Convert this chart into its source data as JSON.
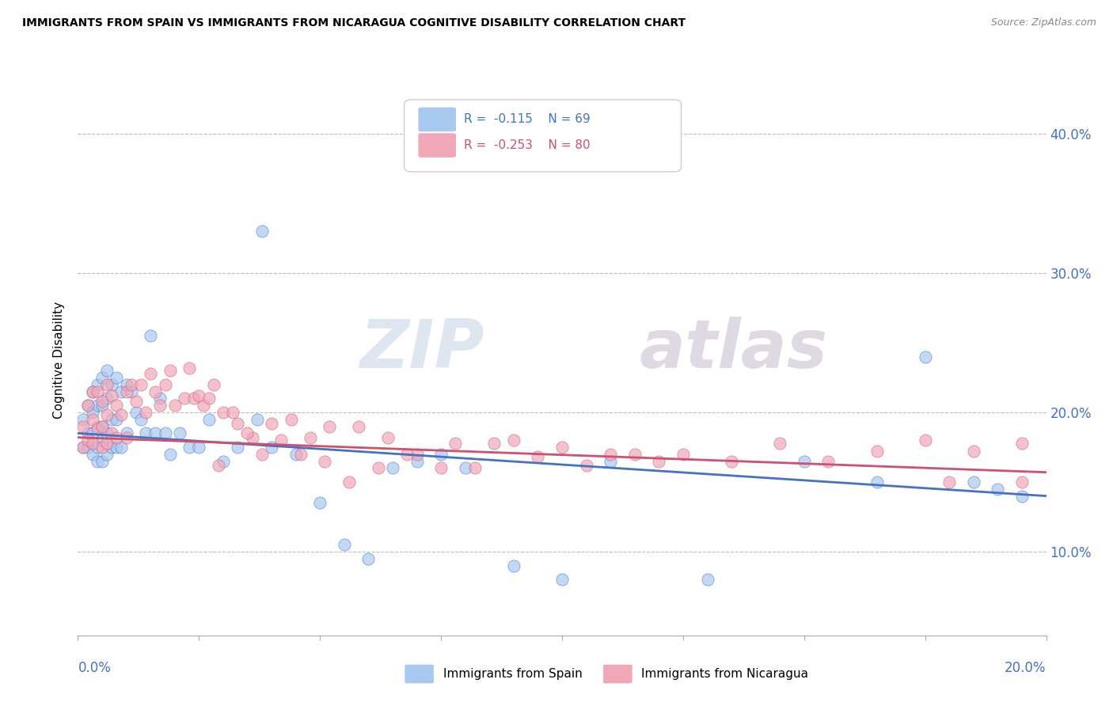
{
  "title": "IMMIGRANTS FROM SPAIN VS IMMIGRANTS FROM NICARAGUA COGNITIVE DISABILITY CORRELATION CHART",
  "source": "Source: ZipAtlas.com",
  "ylabel": "Cognitive Disability",
  "ytick_vals": [
    0.1,
    0.2,
    0.3,
    0.4
  ],
  "xmin": 0.0,
  "xmax": 0.2,
  "ymin": 0.04,
  "ymax": 0.435,
  "spain_color": "#a8c8f0",
  "nicaragua_color": "#f0a8b8",
  "spain_line_color": "#4472c4",
  "nicaragua_line_color": "#d05070",
  "spain_R": -0.115,
  "spain_N": 69,
  "nicaragua_R": -0.253,
  "nicaragua_N": 80,
  "legend_label_spain": "Immigrants from Spain",
  "legend_label_nicaragua": "Immigrants from Nicaragua",
  "watermark_zip": "ZIP",
  "watermark_atlas": "atlas",
  "spain_line_x0": 0.0,
  "spain_line_y0": 0.185,
  "spain_line_x1": 0.2,
  "spain_line_y1": 0.14,
  "nicaragua_line_x0": 0.0,
  "nicaragua_line_y0": 0.182,
  "nicaragua_line_x1": 0.2,
  "nicaragua_line_y1": 0.157,
  "spain_scatter_x": [
    0.001,
    0.001,
    0.002,
    0.002,
    0.002,
    0.003,
    0.003,
    0.003,
    0.003,
    0.004,
    0.004,
    0.004,
    0.004,
    0.004,
    0.005,
    0.005,
    0.005,
    0.005,
    0.005,
    0.006,
    0.006,
    0.006,
    0.006,
    0.007,
    0.007,
    0.007,
    0.008,
    0.008,
    0.008,
    0.009,
    0.009,
    0.01,
    0.01,
    0.011,
    0.012,
    0.013,
    0.014,
    0.015,
    0.016,
    0.017,
    0.018,
    0.019,
    0.021,
    0.023,
    0.025,
    0.027,
    0.03,
    0.033,
    0.037,
    0.04,
    0.045,
    0.05,
    0.055,
    0.06,
    0.065,
    0.07,
    0.075,
    0.08,
    0.09,
    0.1,
    0.11,
    0.13,
    0.15,
    0.165,
    0.175,
    0.185,
    0.19,
    0.195,
    0.038
  ],
  "spain_scatter_y": [
    0.195,
    0.175,
    0.205,
    0.185,
    0.175,
    0.215,
    0.2,
    0.185,
    0.17,
    0.22,
    0.205,
    0.19,
    0.175,
    0.165,
    0.225,
    0.205,
    0.19,
    0.18,
    0.165,
    0.23,
    0.21,
    0.185,
    0.17,
    0.22,
    0.195,
    0.175,
    0.225,
    0.195,
    0.175,
    0.215,
    0.175,
    0.22,
    0.185,
    0.215,
    0.2,
    0.195,
    0.185,
    0.255,
    0.185,
    0.21,
    0.185,
    0.17,
    0.185,
    0.175,
    0.175,
    0.195,
    0.165,
    0.175,
    0.195,
    0.175,
    0.17,
    0.135,
    0.105,
    0.095,
    0.16,
    0.165,
    0.17,
    0.16,
    0.09,
    0.08,
    0.165,
    0.08,
    0.165,
    0.15,
    0.24,
    0.15,
    0.145,
    0.14,
    0.33
  ],
  "nicaragua_scatter_x": [
    0.001,
    0.001,
    0.002,
    0.002,
    0.003,
    0.003,
    0.003,
    0.004,
    0.004,
    0.005,
    0.005,
    0.005,
    0.006,
    0.006,
    0.006,
    0.007,
    0.007,
    0.008,
    0.008,
    0.009,
    0.01,
    0.01,
    0.011,
    0.012,
    0.013,
    0.014,
    0.015,
    0.016,
    0.017,
    0.018,
    0.019,
    0.02,
    0.022,
    0.024,
    0.026,
    0.028,
    0.03,
    0.033,
    0.036,
    0.04,
    0.044,
    0.048,
    0.052,
    0.058,
    0.064,
    0.07,
    0.078,
    0.086,
    0.095,
    0.105,
    0.115,
    0.125,
    0.135,
    0.145,
    0.155,
    0.165,
    0.175,
    0.185,
    0.195,
    0.023,
    0.025,
    0.027,
    0.029,
    0.032,
    0.035,
    0.038,
    0.042,
    0.046,
    0.051,
    0.056,
    0.062,
    0.068,
    0.075,
    0.082,
    0.09,
    0.1,
    0.11,
    0.12,
    0.18,
    0.195
  ],
  "nicaragua_scatter_y": [
    0.19,
    0.175,
    0.205,
    0.18,
    0.215,
    0.195,
    0.178,
    0.215,
    0.188,
    0.208,
    0.19,
    0.175,
    0.22,
    0.198,
    0.178,
    0.212,
    0.185,
    0.205,
    0.182,
    0.198,
    0.215,
    0.182,
    0.22,
    0.208,
    0.22,
    0.2,
    0.228,
    0.215,
    0.205,
    0.22,
    0.23,
    0.205,
    0.21,
    0.21,
    0.205,
    0.22,
    0.2,
    0.192,
    0.182,
    0.192,
    0.195,
    0.182,
    0.19,
    0.19,
    0.182,
    0.17,
    0.178,
    0.178,
    0.168,
    0.162,
    0.17,
    0.17,
    0.165,
    0.178,
    0.165,
    0.172,
    0.18,
    0.172,
    0.15,
    0.232,
    0.212,
    0.21,
    0.162,
    0.2,
    0.185,
    0.17,
    0.18,
    0.17,
    0.165,
    0.15,
    0.16,
    0.17,
    0.16,
    0.16,
    0.18,
    0.175,
    0.17,
    0.165,
    0.15,
    0.178
  ]
}
